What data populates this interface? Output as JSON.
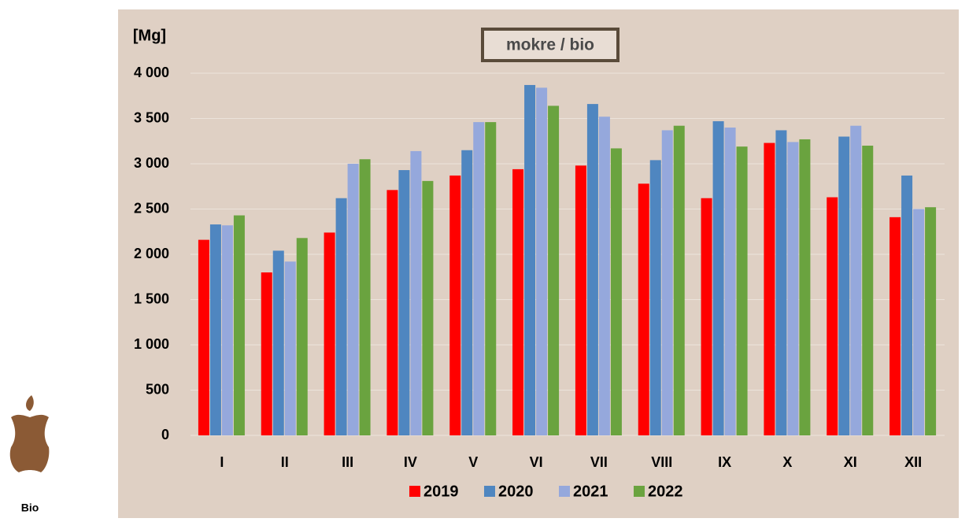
{
  "chart_data": {
    "type": "bar",
    "title": "mokre / bio",
    "y_label": "[Mg]",
    "categories": [
      "I",
      "II",
      "III",
      "IV",
      "V",
      "VI",
      "VII",
      "VIII",
      "IX",
      "X",
      "XI",
      "XII"
    ],
    "series": [
      {
        "name": "2019",
        "color": "#ff0000",
        "values": [
          2160,
          1800,
          2240,
          2710,
          2870,
          2940,
          2980,
          2780,
          2620,
          3230,
          2630,
          2410
        ]
      },
      {
        "name": "2020",
        "color": "#4f86c0",
        "values": [
          2330,
          2040,
          2620,
          2930,
          3150,
          3870,
          3660,
          3040,
          3470,
          3370,
          3300,
          2870
        ]
      },
      {
        "name": "2021",
        "color": "#95a8dc",
        "values": [
          2320,
          1920,
          3000,
          3140,
          3460,
          3840,
          3520,
          3370,
          3400,
          3240,
          3420,
          2500
        ]
      },
      {
        "name": "2022",
        "color": "#6aa33f",
        "values": [
          2430,
          2180,
          3050,
          2810,
          3460,
          3640,
          3170,
          3420,
          3190,
          3270,
          3200,
          2520
        ]
      }
    ],
    "ylim": [
      0,
      4000
    ],
    "yticks": [
      0,
      500,
      {
        "value": 1000,
        "label": "1 000"
      },
      {
        "value": 1500,
        "label": "1 500"
      },
      {
        "value": 2000,
        "label": "2 000"
      },
      {
        "value": 2500,
        "label": "2 500"
      },
      {
        "value": 3000,
        "label": "3 000"
      },
      {
        "value": 3500,
        "label": "3 500"
      },
      {
        "value": 4000,
        "label": "4 000"
      }
    ],
    "grid": true
  },
  "logo": {
    "label": "Bio"
  }
}
